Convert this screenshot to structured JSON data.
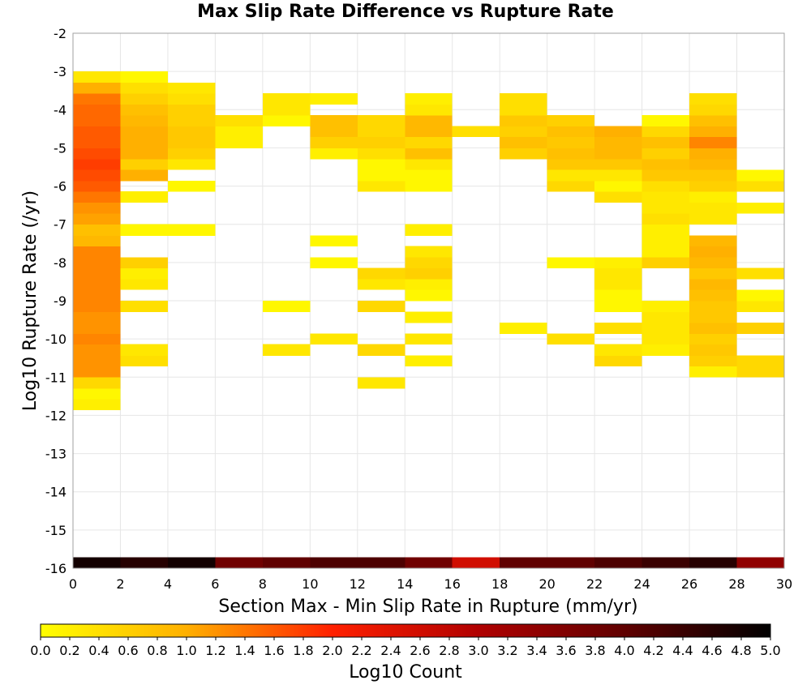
{
  "chart_data": {
    "type": "heatmap",
    "title": "Max Slip Rate Difference vs Rupture Rate",
    "xlabel": "Section Max - Min Slip Rate in Rupture (mm/yr)",
    "ylabel": "Log10 Rupture Rate (/yr)",
    "xlim": [
      0,
      30
    ],
    "ylim": [
      -16,
      -2
    ],
    "x_ticks": [
      "0",
      "2",
      "4",
      "6",
      "8",
      "10",
      "12",
      "14",
      "16",
      "18",
      "20",
      "22",
      "24",
      "26",
      "28",
      "30"
    ],
    "y_ticks": [
      "-2",
      "-3",
      "-4",
      "-5",
      "-6",
      "-7",
      "-8",
      "-9",
      "-10",
      "-11",
      "-12",
      "-13",
      "-14",
      "-15",
      "-16"
    ],
    "x_bin_width": 2,
    "y_bin_height": 0.286,
    "grid": true,
    "colorbar": {
      "label": "Log10 Count",
      "min": 0.0,
      "max": 5.0,
      "ticks": [
        "0.0",
        "0.2",
        "0.4",
        "0.6",
        "0.8",
        "1.0",
        "1.2",
        "1.4",
        "1.6",
        "1.8",
        "2.0",
        "2.2",
        "2.4",
        "2.6",
        "2.8",
        "3.0",
        "3.2",
        "3.4",
        "3.6",
        "3.8",
        "4.0",
        "4.2",
        "4.4",
        "4.6",
        "4.8",
        "5.0"
      ],
      "stops": [
        {
          "value": 0.0,
          "color": "#ffff00"
        },
        {
          "value": 1.0,
          "color": "#ffb000"
        },
        {
          "value": 2.0,
          "color": "#ff2000"
        },
        {
          "value": 3.0,
          "color": "#b00000"
        },
        {
          "value": 4.0,
          "color": "#600000"
        },
        {
          "value": 5.0,
          "color": "#000000"
        }
      ]
    },
    "columns": [
      {
        "x0": 0,
        "cells": [
          [
            -11.86,
            -11.57,
            0.2
          ],
          [
            -11.57,
            -11.29,
            0.1
          ],
          [
            -11.29,
            -11.0,
            0.5
          ],
          [
            -11.0,
            -10.71,
            1.2
          ],
          [
            -10.71,
            -10.43,
            1.2
          ],
          [
            -10.43,
            -10.14,
            1.2
          ],
          [
            -10.14,
            -9.86,
            1.3
          ],
          [
            -9.86,
            -9.57,
            1.2
          ],
          [
            -9.57,
            -9.29,
            1.2
          ],
          [
            -9.29,
            -9.0,
            1.3
          ],
          [
            -9.0,
            -8.71,
            1.3
          ],
          [
            -8.71,
            -8.43,
            1.3
          ],
          [
            -8.43,
            -8.14,
            1.3
          ],
          [
            -8.14,
            -7.86,
            1.3
          ],
          [
            -7.86,
            -7.57,
            1.3
          ],
          [
            -7.57,
            -7.29,
            0.9
          ],
          [
            -7.29,
            -7.0,
            0.8
          ],
          [
            -7.0,
            -6.71,
            1.1
          ],
          [
            -6.71,
            -6.43,
            1.2
          ],
          [
            -6.43,
            -6.14,
            1.4
          ],
          [
            -6.14,
            -5.86,
            1.6
          ],
          [
            -5.86,
            -5.57,
            1.7
          ],
          [
            -5.57,
            -5.29,
            1.8
          ],
          [
            -5.29,
            -5.0,
            1.7
          ],
          [
            -5.0,
            -4.71,
            1.6
          ],
          [
            -4.71,
            -4.43,
            1.6
          ],
          [
            -4.43,
            -4.14,
            1.5
          ],
          [
            -4.14,
            -3.86,
            1.5
          ],
          [
            -3.86,
            -3.57,
            1.4
          ],
          [
            -3.57,
            -3.29,
            1.0
          ],
          [
            -3.29,
            -3.0,
            0.3
          ],
          [
            -16.0,
            -15.71,
            4.8
          ]
        ]
      },
      {
        "x0": 2,
        "cells": [
          [
            -10.71,
            -10.43,
            0.4
          ],
          [
            -10.43,
            -10.14,
            0.3
          ],
          [
            -9.29,
            -9.0,
            0.4
          ],
          [
            -8.71,
            -8.43,
            0.3
          ],
          [
            -8.43,
            -8.14,
            0.2
          ],
          [
            -8.14,
            -7.86,
            0.6
          ],
          [
            -7.29,
            -7.0,
            0.1
          ],
          [
            -6.43,
            -6.14,
            0.2
          ],
          [
            -5.86,
            -5.57,
            1.0
          ],
          [
            -5.57,
            -5.29,
            0.6
          ],
          [
            -5.29,
            -5.0,
            1.0
          ],
          [
            -5.0,
            -4.71,
            1.0
          ],
          [
            -4.71,
            -4.43,
            1.0
          ],
          [
            -4.43,
            -4.14,
            0.9
          ],
          [
            -4.14,
            -3.86,
            0.8
          ],
          [
            -3.86,
            -3.57,
            0.6
          ],
          [
            -3.57,
            -3.29,
            0.4
          ],
          [
            -3.29,
            -3.0,
            0.1
          ],
          [
            -16.0,
            -15.71,
            4.6
          ]
        ]
      },
      {
        "x0": 4,
        "cells": [
          [
            -7.29,
            -7.0,
            0.1
          ],
          [
            -6.14,
            -5.86,
            0.1
          ],
          [
            -5.57,
            -5.29,
            0.3
          ],
          [
            -5.29,
            -5.0,
            0.6
          ],
          [
            -5.0,
            -4.71,
            0.7
          ],
          [
            -4.71,
            -4.43,
            0.7
          ],
          [
            -4.43,
            -4.14,
            0.6
          ],
          [
            -4.14,
            -3.86,
            0.6
          ],
          [
            -3.86,
            -3.57,
            0.4
          ],
          [
            -3.57,
            -3.29,
            0.3
          ],
          [
            -16.0,
            -15.71,
            4.8
          ]
        ]
      },
      {
        "x0": 6,
        "cells": [
          [
            -5.0,
            -4.71,
            0.2
          ],
          [
            -4.71,
            -4.43,
            0.2
          ],
          [
            -4.43,
            -4.14,
            0.4
          ],
          [
            -16.0,
            -15.71,
            3.8
          ]
        ]
      },
      {
        "x0": 8,
        "cells": [
          [
            -10.43,
            -10.14,
            0.3
          ],
          [
            -9.29,
            -9.0,
            0.1
          ],
          [
            -4.43,
            -4.14,
            0.1
          ],
          [
            -4.14,
            -3.86,
            0.3
          ],
          [
            -3.86,
            -3.57,
            0.3
          ],
          [
            -16.0,
            -15.71,
            4.0
          ]
        ]
      },
      {
        "x0": 10,
        "cells": [
          [
            -10.14,
            -9.86,
            0.3
          ],
          [
            -8.14,
            -7.86,
            0.1
          ],
          [
            -7.57,
            -7.29,
            0.1
          ],
          [
            -5.29,
            -5.0,
            0.2
          ],
          [
            -5.0,
            -4.71,
            0.6
          ],
          [
            -4.71,
            -4.43,
            0.8
          ],
          [
            -4.43,
            -4.14,
            0.8
          ],
          [
            -3.86,
            -3.57,
            0.2
          ],
          [
            -16.0,
            -15.71,
            4.2
          ]
        ]
      },
      {
        "x0": 12,
        "cells": [
          [
            -11.29,
            -11.0,
            0.3
          ],
          [
            -10.43,
            -10.14,
            0.5
          ],
          [
            -9.29,
            -9.0,
            0.5
          ],
          [
            -8.71,
            -8.43,
            0.3
          ],
          [
            -8.43,
            -8.14,
            0.5
          ],
          [
            -6.14,
            -5.86,
            0.3
          ],
          [
            -5.86,
            -5.57,
            0.1
          ],
          [
            -5.57,
            -5.29,
            0.1
          ],
          [
            -5.29,
            -5.0,
            0.4
          ],
          [
            -5.0,
            -4.71,
            0.6
          ],
          [
            -4.71,
            -4.43,
            0.5
          ],
          [
            -4.43,
            -4.14,
            0.5
          ],
          [
            -16.0,
            -15.71,
            4.2
          ]
        ]
      },
      {
        "x0": 14,
        "cells": [
          [
            -10.71,
            -10.43,
            0.2
          ],
          [
            -10.14,
            -9.86,
            0.3
          ],
          [
            -9.57,
            -9.29,
            0.2
          ],
          [
            -9.0,
            -8.71,
            0.1
          ],
          [
            -8.71,
            -8.43,
            0.2
          ],
          [
            -8.43,
            -8.14,
            0.6
          ],
          [
            -8.14,
            -7.86,
            0.5
          ],
          [
            -7.86,
            -7.57,
            0.3
          ],
          [
            -7.29,
            -7.0,
            0.2
          ],
          [
            -6.14,
            -5.86,
            0.1
          ],
          [
            -5.86,
            -5.57,
            0.1
          ],
          [
            -5.57,
            -5.29,
            0.3
          ],
          [
            -5.29,
            -5.0,
            0.8
          ],
          [
            -5.0,
            -4.71,
            0.5
          ],
          [
            -4.71,
            -4.43,
            0.9
          ],
          [
            -4.43,
            -4.14,
            0.9
          ],
          [
            -4.14,
            -3.86,
            0.3
          ],
          [
            -3.86,
            -3.57,
            0.2
          ],
          [
            -16.0,
            -15.71,
            3.8
          ]
        ]
      },
      {
        "x0": 16,
        "cells": [
          [
            -4.71,
            -4.43,
            0.4
          ],
          [
            -16.0,
            -15.71,
            2.6
          ]
        ]
      },
      {
        "x0": 18,
        "cells": [
          [
            -9.86,
            -9.57,
            0.2
          ],
          [
            -5.29,
            -5.0,
            0.6
          ],
          [
            -5.0,
            -4.71,
            0.8
          ],
          [
            -4.71,
            -4.43,
            0.6
          ],
          [
            -4.43,
            -4.14,
            0.7
          ],
          [
            -4.14,
            -3.86,
            0.4
          ],
          [
            -3.86,
            -3.57,
            0.4
          ],
          [
            -16.0,
            -15.71,
            4.0
          ]
        ]
      },
      {
        "x0": 20,
        "cells": [
          [
            -10.14,
            -9.86,
            0.4
          ],
          [
            -8.14,
            -7.86,
            0.1
          ],
          [
            -6.14,
            -5.86,
            0.5
          ],
          [
            -5.86,
            -5.57,
            0.3
          ],
          [
            -5.57,
            -5.29,
            0.7
          ],
          [
            -5.29,
            -5.0,
            0.8
          ],
          [
            -5.0,
            -4.71,
            0.7
          ],
          [
            -4.71,
            -4.43,
            0.8
          ],
          [
            -4.43,
            -4.14,
            0.6
          ],
          [
            -16.0,
            -15.71,
            4.0
          ]
        ]
      },
      {
        "x0": 22,
        "cells": [
          [
            -10.71,
            -10.43,
            0.5
          ],
          [
            -10.43,
            -10.14,
            0.3
          ],
          [
            -9.86,
            -9.57,
            0.4
          ],
          [
            -9.29,
            -9.0,
            0.1
          ],
          [
            -9.0,
            -8.71,
            0.1
          ],
          [
            -8.71,
            -8.43,
            0.3
          ],
          [
            -8.43,
            -8.14,
            0.3
          ],
          [
            -8.14,
            -7.86,
            0.2
          ],
          [
            -6.43,
            -6.14,
            0.4
          ],
          [
            -6.14,
            -5.86,
            0.1
          ],
          [
            -5.86,
            -5.57,
            0.3
          ],
          [
            -5.57,
            -5.29,
            0.7
          ],
          [
            -5.29,
            -5.0,
            0.9
          ],
          [
            -5.0,
            -4.71,
            0.9
          ],
          [
            -4.71,
            -4.43,
            1.0
          ],
          [
            -16.0,
            -15.71,
            4.2
          ]
        ]
      },
      {
        "x0": 24,
        "cells": [
          [
            -10.43,
            -10.14,
            0.2
          ],
          [
            -10.14,
            -9.86,
            0.3
          ],
          [
            -9.86,
            -9.57,
            0.3
          ],
          [
            -9.57,
            -9.29,
            0.3
          ],
          [
            -9.29,
            -9.0,
            0.2
          ],
          [
            -8.14,
            -7.86,
            0.6
          ],
          [
            -7.86,
            -7.57,
            0.2
          ],
          [
            -7.57,
            -7.29,
            0.2
          ],
          [
            -7.29,
            -7.0,
            0.2
          ],
          [
            -7.0,
            -6.71,
            0.4
          ],
          [
            -6.71,
            -6.43,
            0.3
          ],
          [
            -6.43,
            -6.14,
            0.3
          ],
          [
            -6.14,
            -5.86,
            0.4
          ],
          [
            -5.86,
            -5.57,
            0.7
          ],
          [
            -5.57,
            -5.29,
            0.8
          ],
          [
            -5.29,
            -5.0,
            0.6
          ],
          [
            -5.0,
            -4.71,
            0.8
          ],
          [
            -4.71,
            -4.43,
            0.5
          ],
          [
            -4.43,
            -4.14,
            0.1
          ],
          [
            -16.0,
            -15.71,
            4.4
          ]
        ]
      },
      {
        "x0": 26,
        "cells": [
          [
            -11.0,
            -10.71,
            0.2
          ],
          [
            -10.71,
            -10.43,
            0.6
          ],
          [
            -10.43,
            -10.14,
            0.7
          ],
          [
            -10.14,
            -9.86,
            0.6
          ],
          [
            -9.86,
            -9.57,
            0.8
          ],
          [
            -9.57,
            -9.29,
            0.7
          ],
          [
            -9.29,
            -9.0,
            0.7
          ],
          [
            -9.0,
            -8.71,
            0.8
          ],
          [
            -8.71,
            -8.43,
            0.9
          ],
          [
            -8.43,
            -8.14,
            0.7
          ],
          [
            -8.14,
            -7.86,
            0.9
          ],
          [
            -7.86,
            -7.57,
            1.0
          ],
          [
            -7.57,
            -7.29,
            0.9
          ],
          [
            -7.0,
            -6.71,
            0.3
          ],
          [
            -6.71,
            -6.43,
            0.3
          ],
          [
            -6.43,
            -6.14,
            0.2
          ],
          [
            -6.14,
            -5.86,
            0.6
          ],
          [
            -5.86,
            -5.57,
            0.7
          ],
          [
            -5.57,
            -5.29,
            0.9
          ],
          [
            -5.29,
            -5.0,
            1.0
          ],
          [
            -5.0,
            -4.71,
            1.3
          ],
          [
            -4.71,
            -4.43,
            1.0
          ],
          [
            -4.43,
            -4.14,
            0.8
          ],
          [
            -4.14,
            -3.86,
            0.5
          ],
          [
            -3.86,
            -3.57,
            0.4
          ],
          [
            -16.0,
            -15.71,
            4.6
          ]
        ]
      },
      {
        "x0": 28,
        "cells": [
          [
            -11.0,
            -10.71,
            0.5
          ],
          [
            -10.71,
            -10.43,
            0.5
          ],
          [
            -9.86,
            -9.57,
            0.6
          ],
          [
            -9.29,
            -9.0,
            0.3
          ],
          [
            -9.0,
            -8.71,
            0.1
          ],
          [
            -8.43,
            -8.14,
            0.4
          ],
          [
            -6.71,
            -6.43,
            0.2
          ],
          [
            -6.14,
            -5.86,
            0.4
          ],
          [
            -5.86,
            -5.57,
            0.1
          ],
          [
            -16.0,
            -15.71,
            3.4
          ]
        ]
      }
    ]
  }
}
